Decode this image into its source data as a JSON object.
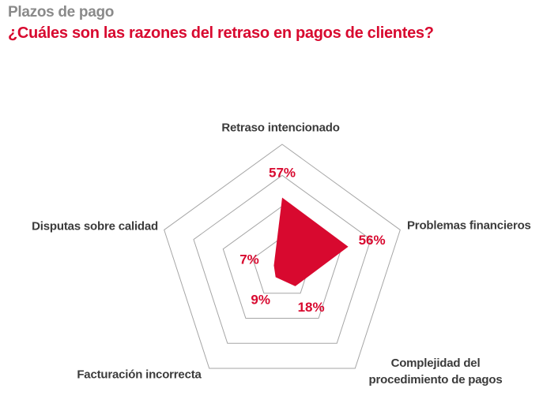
{
  "header": {
    "title": "Plazos de pago",
    "question": "¿Cuáles son las razones del retraso en pagos de clientes?"
  },
  "colors": {
    "accent_red": "#d8092f",
    "title_gray": "#8a8a8a",
    "label_dark": "#3b3b3b",
    "grid_gray": "#a5a5a5",
    "background": "#ffffff"
  },
  "chart_data": {
    "type": "radar",
    "shape": "pentagon",
    "title": "Plazos de pago",
    "subtitle": "¿Cuáles son las razones del retraso en pagos de clientes?",
    "categories": [
      "Retraso intencionado",
      "Problemas financieros",
      "Complejidad del procedimiento de pagos",
      "Facturación incorrecta",
      "Disputas sobre calidad"
    ],
    "values": [
      57,
      56,
      18,
      9,
      7
    ],
    "value_labels": [
      "57%",
      "56%",
      "18%",
      "9%",
      "7%"
    ],
    "max": 100,
    "grid_levels": [
      25,
      50,
      75,
      100
    ],
    "grid": true,
    "legend": false
  }
}
